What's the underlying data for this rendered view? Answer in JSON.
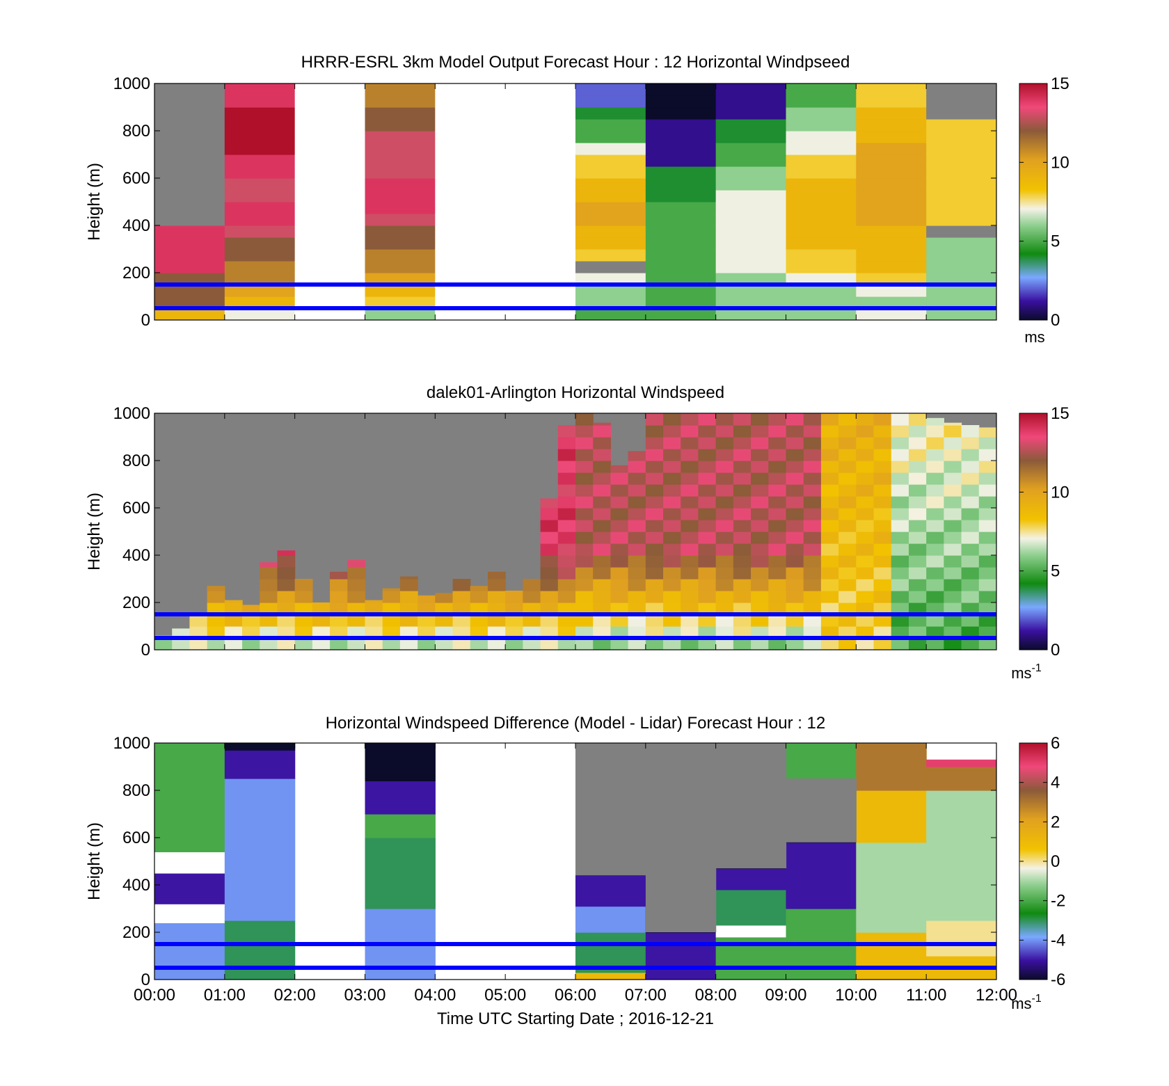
{
  "figure": {
    "xlabel": "Time UTC  Starting Date ; 2016-12-21",
    "time_ticks": [
      "00:00",
      "01:00",
      "02:00",
      "03:00",
      "04:00",
      "05:00",
      "06:00",
      "07:00",
      "08:00",
      "09:00",
      "10:00",
      "11:00",
      "12:00"
    ]
  },
  "chart_data": [
    {
      "type": "heatmap",
      "title": "HRRR-ESRL 3km Model Output   Forecast Hour : 12 Horizontal Windpseed",
      "ylabel": "Height (m)",
      "ylim": [
        0,
        1000
      ],
      "yticks": [
        "0",
        "200",
        "400",
        "600",
        "800",
        "1000"
      ],
      "xlim": [
        "00:00",
        "12:00"
      ],
      "columns_hours": [
        0,
        1,
        2,
        3,
        4,
        5,
        6,
        7,
        8,
        9,
        10,
        11
      ],
      "heights_m": [
        0,
        50,
        100,
        150,
        200,
        250,
        300,
        350,
        400,
        450,
        500,
        550,
        600,
        650,
        700,
        750,
        800,
        850,
        900,
        950
      ],
      "values": [
        [
          9,
          12,
          12,
          12,
          14,
          14,
          14,
          14,
          -1,
          -1,
          -1,
          -1,
          -1,
          -1,
          -1,
          -1,
          -1,
          -1,
          -1,
          -1
        ],
        [
          7,
          9,
          10,
          11,
          11,
          12,
          12,
          13,
          14,
          14,
          13,
          13,
          14,
          14,
          15,
          15,
          15,
          15,
          14,
          14
        ],
        [
          null,
          null,
          null,
          null,
          null,
          null,
          null,
          null,
          null,
          null,
          null,
          null,
          null,
          null,
          null,
          null,
          null,
          null,
          null,
          null
        ],
        [
          6,
          8,
          9,
          10,
          11,
          11,
          12,
          12,
          13,
          14,
          14,
          14,
          13,
          13,
          13,
          13,
          12,
          12,
          11,
          11
        ],
        [
          null,
          null,
          null,
          null,
          null,
          null,
          null,
          null,
          null,
          null,
          null,
          null,
          null,
          null,
          null,
          null,
          null,
          null,
          null,
          null
        ],
        [
          null,
          null,
          null,
          null,
          null,
          null,
          null,
          null,
          null,
          null,
          null,
          null,
          null,
          null,
          null,
          null,
          null,
          null,
          null,
          null
        ],
        [
          5,
          6,
          6,
          7,
          -1,
          8,
          9,
          9,
          10,
          10,
          9,
          9,
          8,
          8,
          7,
          5,
          5,
          4,
          2,
          2
        ],
        [
          5,
          5,
          5,
          5,
          5,
          5,
          5,
          5,
          5,
          5,
          4,
          4,
          4,
          1,
          1,
          1,
          1,
          0,
          0,
          0
        ],
        [
          6,
          6,
          6,
          6,
          7,
          7,
          7,
          7,
          7,
          7,
          7,
          6,
          6,
          5,
          5,
          4,
          4,
          1,
          1,
          1
        ],
        [
          6,
          6,
          6,
          7,
          8,
          8,
          9,
          9,
          9,
          9,
          9,
          9,
          8,
          8,
          7,
          7,
          6,
          6,
          5,
          5
        ],
        [
          7,
          6,
          7,
          8,
          9,
          9,
          9,
          9,
          10,
          10,
          10,
          10,
          10,
          10,
          10,
          9,
          9,
          9,
          8,
          8
        ],
        [
          6,
          6,
          6,
          6,
          6,
          6,
          6,
          -1,
          8,
          8,
          8,
          8,
          8,
          8,
          8,
          8,
          8,
          -1,
          -1,
          -1
        ]
      ],
      "colorbar": {
        "min": 0,
        "max": 15,
        "ticks": [
          "0",
          "5",
          "10",
          "15"
        ],
        "unit": "ms"
      },
      "reference_lines_m": [
        150,
        50
      ],
      "reference_line_color": "#0000ff",
      "missing_color": "#808080"
    },
    {
      "type": "heatmap",
      "title": "dalek01-Arlington  Horizontal Windspeed",
      "ylabel": "Height (m)",
      "ylim": [
        0,
        1000
      ],
      "yticks": [
        "0",
        "200",
        "400",
        "600",
        "800",
        "1000"
      ],
      "xlim": [
        "00:00",
        "12:00"
      ],
      "profiles_per_hour": 4,
      "heights_m": [
        0,
        50,
        100,
        150,
        200,
        250,
        300,
        350,
        400,
        450,
        500,
        550,
        600,
        650,
        700,
        750,
        800,
        850,
        900,
        950
      ],
      "top_m": [
        60,
        90,
        150,
        270,
        210,
        190,
        370,
        420,
        300,
        200,
        330,
        380,
        210,
        260,
        310,
        230,
        240,
        300,
        270,
        330,
        250,
        300,
        640,
        950,
        1000,
        960,
        780,
        840,
        1000,
        1000,
        1000,
        1000,
        1000,
        1000,
        1000,
        1000,
        1000,
        1000,
        1000,
        1000,
        1000,
        1000,
        1000,
        1000,
        980,
        960,
        950,
        940
      ],
      "valid_rows_m": [
        [
          40,
          80
        ],
        [
          30,
          60
        ],
        [
          0,
          20
        ]
      ],
      "speed_m_s": [
        {
          "hour_range": [
            0,
            3
          ],
          "value": 12
        },
        {
          "hour_range": [
            3,
            6
          ],
          "value": 12
        },
        {
          "hour_range": [
            6,
            8
          ],
          "value": 11
        },
        {
          "hour_range": [
            8,
            9.5
          ],
          "value": 11
        },
        {
          "hour_range": [
            9.5,
            10.5
          ],
          "value": 8
        },
        {
          "hour_range": [
            10.5,
            12
          ],
          "value": 6
        }
      ],
      "colorbar": {
        "min": 0,
        "max": 15,
        "ticks": [
          "0",
          "5",
          "10",
          "15"
        ],
        "unit": "ms",
        "unit_sup": "-1"
      },
      "reference_lines_m": [
        150,
        50
      ],
      "reference_line_color": "#0000ff",
      "missing_color": "#808080"
    },
    {
      "type": "heatmap",
      "title": "Horizontal Windspeed Difference (Model - Lidar) Forecast Hour : 12",
      "ylabel": "Height (m)",
      "ylim": [
        0,
        1000
      ],
      "yticks": [
        "0",
        "200",
        "400",
        "600",
        "800",
        "1000"
      ],
      "xlim": [
        "00:00",
        "12:00"
      ],
      "columns_hours": [
        0,
        1,
        2,
        3,
        4,
        5,
        6,
        7,
        8,
        9,
        10,
        11
      ],
      "segments": [
        [
          {
            "y0": 0,
            "y1": 240,
            "v": -4
          },
          {
            "y0": 240,
            "y1": 320,
            "v": null
          },
          {
            "y0": 320,
            "y1": 450,
            "v": -5
          },
          {
            "y0": 450,
            "y1": 540,
            "v": null
          },
          {
            "y0": 540,
            "y1": 1000,
            "v": -2
          }
        ],
        [
          {
            "y0": 0,
            "y1": 250,
            "v": -3
          },
          {
            "y0": 250,
            "y1": 850,
            "v": -4
          },
          {
            "y0": 850,
            "y1": 970,
            "v": -5
          },
          {
            "y0": 970,
            "y1": 1000,
            "v": -6
          }
        ],
        [],
        [
          {
            "y0": 0,
            "y1": 300,
            "v": -4
          },
          {
            "y0": 300,
            "y1": 600,
            "v": -3
          },
          {
            "y0": 600,
            "y1": 700,
            "v": -2
          },
          {
            "y0": 700,
            "y1": 840,
            "v": -5
          },
          {
            "y0": 840,
            "y1": 1000,
            "v": -6
          }
        ],
        [],
        [],
        [
          {
            "y0": 0,
            "y1": 30,
            "v": 1
          },
          {
            "y0": 30,
            "y1": 200,
            "v": -3
          },
          {
            "y0": 200,
            "y1": 310,
            "v": -4
          },
          {
            "y0": 310,
            "y1": 440,
            "v": -5
          },
          {
            "y0": 440,
            "y1": 1000,
            "v": -6
          }
        ],
        [
          {
            "y0": 0,
            "y1": 200,
            "v": -5
          },
          {
            "y0": 200,
            "y1": 1000,
            "v": -6
          }
        ],
        [
          {
            "y0": 0,
            "y1": 180,
            "v": -2
          },
          {
            "y0": 180,
            "y1": 230,
            "v": null
          },
          {
            "y0": 230,
            "y1": 380,
            "v": -3
          },
          {
            "y0": 380,
            "y1": 470,
            "v": -5
          },
          {
            "y0": 470,
            "y1": 1000,
            "v": -6
          }
        ],
        [
          {
            "y0": 0,
            "y1": 300,
            "v": -2
          },
          {
            "y0": 300,
            "y1": 580,
            "v": -5
          },
          {
            "y0": 580,
            "y1": 850,
            "v": -6
          },
          {
            "y0": 850,
            "y1": 1000,
            "v": -2
          }
        ],
        [
          {
            "y0": 0,
            "y1": 50,
            "v": 1
          },
          {
            "y0": 50,
            "y1": 200,
            "v": 1
          },
          {
            "y0": 200,
            "y1": 580,
            "v": -1
          },
          {
            "y0": 580,
            "y1": 800,
            "v": 1
          },
          {
            "y0": 800,
            "y1": 1000,
            "v": 3
          }
        ],
        [
          {
            "y0": 0,
            "y1": 100,
            "v": 1
          },
          {
            "y0": 100,
            "y1": 250,
            "v": 0
          },
          {
            "y0": 250,
            "y1": 800,
            "v": -1
          },
          {
            "y0": 800,
            "y1": 900,
            "v": 3
          },
          {
            "y0": 900,
            "y1": 930,
            "v": 5
          }
        ]
      ],
      "colorbar": {
        "min": -6,
        "max": 6,
        "ticks": [
          "-6",
          "-4",
          "-2",
          "0",
          "2",
          "4",
          "6"
        ],
        "unit": "ms",
        "unit_sup": "-1"
      },
      "reference_lines_m": [
        150,
        50
      ],
      "reference_line_color": "#0000ff",
      "missing_color": "#808080"
    }
  ]
}
